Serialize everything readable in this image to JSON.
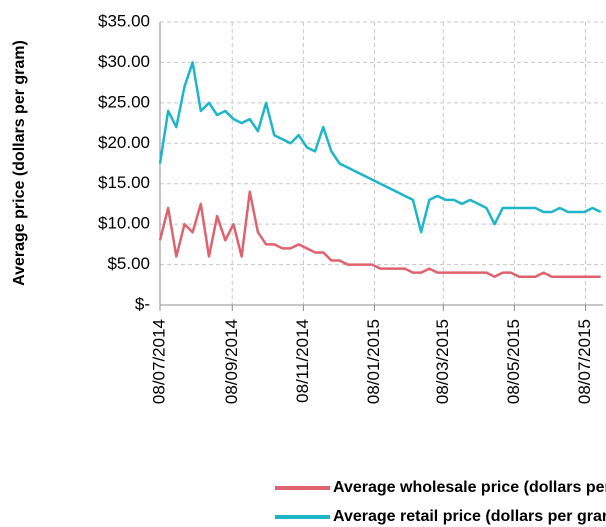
{
  "chart_data": {
    "type": "line",
    "y_axis_label": "Average price (dollars per gram)",
    "x": [
      "2014-07-08",
      "2014-07-15",
      "2014-07-22",
      "2014-07-29",
      "2014-08-05",
      "2014-08-12",
      "2014-08-19",
      "2014-08-26",
      "2014-09-02",
      "2014-09-09",
      "2014-09-16",
      "2014-09-23",
      "2014-09-30",
      "2014-10-07",
      "2014-10-14",
      "2014-10-21",
      "2014-10-28",
      "2014-11-04",
      "2014-11-11",
      "2014-11-18",
      "2014-11-25",
      "2014-12-02",
      "2014-12-09",
      "2014-12-16",
      "2014-12-23",
      "2014-12-30",
      "2015-01-06",
      "2015-01-13",
      "2015-01-20",
      "2015-01-27",
      "2015-02-03",
      "2015-02-10",
      "2015-02-17",
      "2015-02-24",
      "2015-03-03",
      "2015-03-10",
      "2015-03-17",
      "2015-03-24",
      "2015-03-31",
      "2015-04-07",
      "2015-04-14",
      "2015-04-21",
      "2015-04-28",
      "2015-05-05",
      "2015-05-12",
      "2015-05-19",
      "2015-05-26",
      "2015-06-02",
      "2015-06-09",
      "2015-06-16",
      "2015-06-23",
      "2015-06-30",
      "2015-07-07",
      "2015-07-14",
      "2015-07-21"
    ],
    "series": [
      {
        "name": "Average wholesale price (dollars per gram)",
        "color": "#e0626e",
        "values": [
          8,
          12,
          6,
          10,
          9,
          12.5,
          6,
          11,
          8,
          10,
          6,
          14,
          9,
          7.5,
          7.5,
          7,
          7,
          7.5,
          7,
          6.5,
          6.5,
          5.5,
          5.5,
          5,
          5,
          5,
          5,
          4.5,
          4.5,
          4.5,
          4.5,
          4,
          4,
          4.5,
          4,
          4,
          4,
          4,
          4,
          4,
          4,
          3.5,
          4,
          4,
          3.5,
          3.5,
          3.5,
          4,
          3.5,
          3.5,
          3.5,
          3.5,
          3.5,
          3.5,
          3.5
        ]
      },
      {
        "name": "Average retail price (dollars per gram)",
        "color": "#1db6c8",
        "values": [
          17.5,
          24,
          22,
          27,
          30,
          24,
          25,
          23.5,
          24,
          23,
          22.5,
          23,
          21.5,
          25,
          21,
          20.5,
          20,
          21,
          19.5,
          19,
          22,
          19,
          17.5,
          17,
          16.5,
          16,
          15.5,
          15,
          14.5,
          14,
          13.5,
          13,
          9,
          13,
          13.5,
          13,
          13,
          12.5,
          13,
          12.5,
          12,
          10,
          12,
          12,
          12,
          12,
          12,
          11.5,
          11.5,
          12,
          11.5,
          11.5,
          11.5,
          12,
          11.5
        ]
      }
    ],
    "xlim": [
      "2014-07-08",
      "2015-07-23"
    ],
    "xticks": [
      {
        "value": "2014-07-08",
        "label": "08/07/2014"
      },
      {
        "value": "2014-09-08",
        "label": "08/09/2014"
      },
      {
        "value": "2014-11-08",
        "label": "08/11/2014"
      },
      {
        "value": "2015-01-08",
        "label": "08/01/2015"
      },
      {
        "value": "2015-03-08",
        "label": "08/03/2015"
      },
      {
        "value": "2015-05-08",
        "label": "08/05/2015"
      },
      {
        "value": "2015-07-08",
        "label": "08/07/2015"
      }
    ],
    "ylim": [
      0,
      35
    ],
    "yticks": [
      {
        "value": 0,
        "label": "$-"
      },
      {
        "value": 5,
        "label": "$5.00"
      },
      {
        "value": 10,
        "label": "$10.00"
      },
      {
        "value": 15,
        "label": "$15.00"
      },
      {
        "value": 20,
        "label": "$20.00"
      },
      {
        "value": 25,
        "label": "$25.00"
      },
      {
        "value": 30,
        "label": "$30.00"
      },
      {
        "value": 35,
        "label": "$35.00"
      }
    ],
    "grid": true,
    "legend": "bottom"
  }
}
